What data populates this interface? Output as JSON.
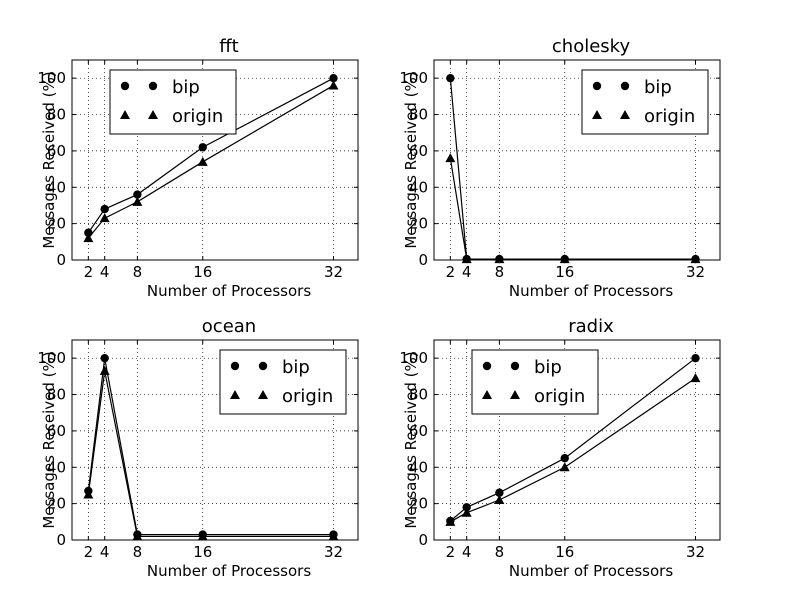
{
  "chart_data": [
    {
      "type": "line",
      "title": "fft",
      "xlabel": "Number of Processors",
      "ylabel": "Messages Received (%)",
      "x": [
        2,
        4,
        8,
        16,
        32
      ],
      "xticks": [
        2,
        4,
        8,
        16,
        32
      ],
      "xlim": [
        0,
        35
      ],
      "ylim": [
        0,
        110
      ],
      "yticks": [
        0,
        20,
        40,
        60,
        80,
        100
      ],
      "grid": true,
      "legend_position": "upper left",
      "series": [
        {
          "name": "bip",
          "marker": "circle",
          "values": [
            15,
            28,
            36,
            62,
            100
          ]
        },
        {
          "name": "origin",
          "marker": "triangle",
          "values": [
            12,
            23,
            32,
            54,
            96
          ]
        }
      ]
    },
    {
      "type": "line",
      "title": "cholesky",
      "xlabel": "Number of Processors",
      "ylabel": "Messages Received (%)",
      "x": [
        2,
        4,
        8,
        16,
        32
      ],
      "xticks": [
        2,
        4,
        8,
        16,
        32
      ],
      "xlim": [
        0,
        35
      ],
      "ylim": [
        0,
        110
      ],
      "yticks": [
        0,
        20,
        40,
        60,
        80,
        100
      ],
      "grid": true,
      "legend_position": "upper right",
      "series": [
        {
          "name": "bip",
          "marker": "circle",
          "values": [
            100,
            0.5,
            0.5,
            0.5,
            0.5
          ]
        },
        {
          "name": "origin",
          "marker": "triangle",
          "values": [
            56,
            0.5,
            0.5,
            0.5,
            0.5
          ]
        }
      ]
    },
    {
      "type": "line",
      "title": "ocean",
      "xlabel": "Number of Processors",
      "ylabel": "Messages Received (%)",
      "x": [
        2,
        4,
        8,
        16,
        32
      ],
      "xticks": [
        2,
        4,
        8,
        16,
        32
      ],
      "xlim": [
        0,
        35
      ],
      "ylim": [
        0,
        110
      ],
      "yticks": [
        0,
        20,
        40,
        60,
        80,
        100
      ],
      "grid": true,
      "legend_position": "upper right",
      "series": [
        {
          "name": "bip",
          "marker": "circle",
          "values": [
            27,
            100,
            3,
            3,
            3
          ]
        },
        {
          "name": "origin",
          "marker": "triangle",
          "values": [
            25,
            93,
            2,
            2,
            2
          ]
        }
      ]
    },
    {
      "type": "line",
      "title": "radix",
      "xlabel": "Number of Processors",
      "ylabel": "Messages Received (%)",
      "x": [
        2,
        4,
        8,
        16,
        32
      ],
      "xticks": [
        2,
        4,
        8,
        16,
        32
      ],
      "xlim": [
        0,
        35
      ],
      "ylim": [
        0,
        110
      ],
      "yticks": [
        0,
        20,
        40,
        60,
        80,
        100
      ],
      "grid": true,
      "legend_position": "upper left",
      "series": [
        {
          "name": "bip",
          "marker": "circle",
          "values": [
            10.5,
            18,
            26,
            45,
            100
          ]
        },
        {
          "name": "origin",
          "marker": "triangle",
          "values": [
            10,
            15,
            22,
            40,
            89
          ]
        }
      ]
    }
  ]
}
